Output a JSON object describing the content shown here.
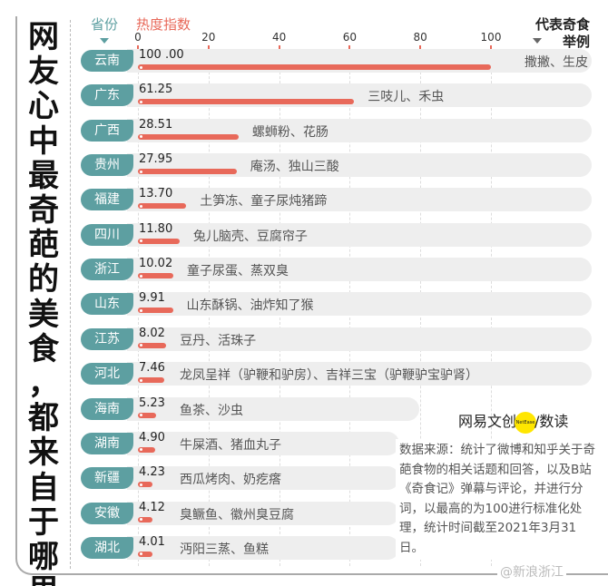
{
  "title": [
    "网",
    "友",
    "心",
    "中",
    "最",
    "奇",
    "葩",
    "的",
    "美",
    "食",
    "，",
    "都",
    "来",
    "自",
    "于",
    "哪",
    "里"
  ],
  "header": {
    "province": "省份",
    "index": "热度指数",
    "food_line1": "代表奇食",
    "food_line2": "举例"
  },
  "colors": {
    "teal": "#5d9fa1",
    "red": "#e8695a",
    "track": "#eeeeee"
  },
  "chart_data": {
    "type": "bar",
    "orientation": "horizontal",
    "xlim": [
      0,
      100
    ],
    "ticks": [
      "0",
      "20",
      "40",
      "60",
      "80",
      "100"
    ],
    "rows": [
      {
        "province": "云南",
        "value": 100.0,
        "label": "100 .00",
        "food": "撒撇、生皮"
      },
      {
        "province": "广东",
        "value": 61.25,
        "label": "61.25",
        "food": "三吱儿、禾虫"
      },
      {
        "province": "广西",
        "value": 28.51,
        "label": "28.51",
        "food": "螺蛳粉、花肠"
      },
      {
        "province": "贵州",
        "value": 27.95,
        "label": "27.95",
        "food": "庵汤、独山三酸"
      },
      {
        "province": "福建",
        "value": 13.7,
        "label": "13.70",
        "food": "土笋冻、童子尿炖猪蹄"
      },
      {
        "province": "四川",
        "value": 11.8,
        "label": "11.80",
        "food": "兔儿脑壳、豆腐帘子"
      },
      {
        "province": "浙江",
        "value": 10.02,
        "label": "10.02",
        "food": "童子尿蛋、蒸双臭"
      },
      {
        "province": "山东",
        "value": 9.91,
        "label": "9.91",
        "food": "山东酥锅、油炸知了猴"
      },
      {
        "province": "江苏",
        "value": 8.02,
        "label": "8.02",
        "food": "豆丹、活珠子"
      },
      {
        "province": "河北",
        "value": 7.46,
        "label": "7.46",
        "food": "龙凤呈祥（驴鞭和驴房）、吉祥三宝（驴鞭驴宝驴肾）"
      },
      {
        "province": "海南",
        "value": 5.23,
        "label": "5.23",
        "food": "鱼茶、沙虫"
      },
      {
        "province": "湖南",
        "value": 4.9,
        "label": "4.90",
        "food": "牛屎酒、猪血丸子"
      },
      {
        "province": "新疆",
        "value": 4.23,
        "label": "4.23",
        "food": "西瓜烤肉、奶疙瘩"
      },
      {
        "province": "安徽",
        "value": 4.12,
        "label": "4.12",
        "food": "臭鳜鱼、徽州臭豆腐"
      },
      {
        "province": "湖北",
        "value": 4.01,
        "label": "4.01",
        "food": "沔阳三蒸、鱼糕"
      }
    ]
  },
  "logo": {
    "text1": "网易文创",
    "badge": "NetEase",
    "text2": "/数读"
  },
  "note": "数据来源：统计了微博和知乎关于奇葩食物的相关话题和回答，以及B站《奇食记》弹幕与评论，并进行分词，以最高的为100进行标准化处理，统计时间截至2021年3月31日。",
  "watermark": "@新浪浙江"
}
